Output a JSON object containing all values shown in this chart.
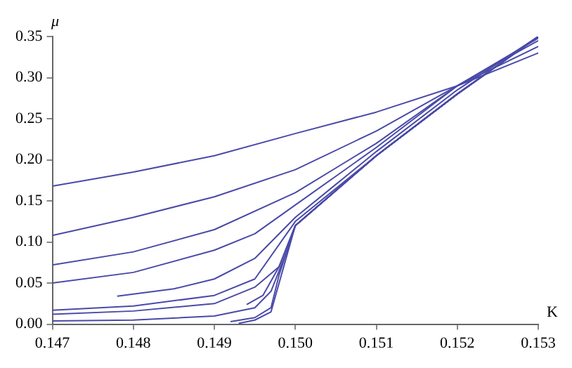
{
  "chart_data": {
    "type": "line",
    "xlabel": "K",
    "ylabel": "μ",
    "xlim": [
      0.147,
      0.153
    ],
    "ylim": [
      0,
      0.35
    ],
    "xticks": [
      0.147,
      0.148,
      0.149,
      {
        "value": 0.15,
        "label": "0.150"
      },
      0.151,
      0.152,
      0.153
    ],
    "yticks": [
      {
        "value": 0,
        "label": "0.00"
      },
      {
        "value": 0.05,
        "label": "0.05"
      },
      {
        "value": 0.1,
        "label": "0.10"
      },
      {
        "value": 0.15,
        "label": "0.15"
      },
      {
        "value": 0.2,
        "label": "0.20"
      },
      {
        "value": 0.25,
        "label": "0.25"
      },
      {
        "value": 0.3,
        "label": "0.30"
      },
      {
        "value": 0.35,
        "label": "0.35"
      }
    ],
    "grid": false,
    "legend": false,
    "marker": "none",
    "line_style": "solid",
    "series": [
      {
        "color": "#4a4aa8",
        "x": [
          0.147,
          0.148,
          0.149,
          0.15,
          0.151,
          0.152,
          0.153
        ],
        "values": [
          0.168,
          0.185,
          0.205,
          0.232,
          0.258,
          0.29,
          0.33
        ]
      },
      {
        "color": "#4a4aa8",
        "x": [
          0.147,
          0.148,
          0.149,
          0.15,
          0.151,
          0.152,
          0.153
        ],
        "values": [
          0.108,
          0.13,
          0.155,
          0.188,
          0.235,
          0.29,
          0.338
        ]
      },
      {
        "color": "#4a4aa8",
        "x": [
          0.147,
          0.148,
          0.149,
          0.15,
          0.1505,
          0.151,
          0.152,
          0.153
        ],
        "values": [
          0.072,
          0.088,
          0.115,
          0.16,
          0.19,
          0.22,
          0.29,
          0.345
        ]
      },
      {
        "color": "#4a4aa8",
        "x": [
          0.147,
          0.148,
          0.149,
          0.1495,
          0.15,
          0.1505,
          0.151,
          0.152,
          0.153
        ],
        "values": [
          0.05,
          0.063,
          0.09,
          0.11,
          0.145,
          0.18,
          0.215,
          0.29,
          0.348
        ]
      },
      {
        "color": "#4a4aa8",
        "x": [
          0.1478,
          0.1485,
          0.149,
          0.1495,
          0.15,
          0.1505,
          0.151,
          0.152,
          0.153
        ],
        "values": [
          0.034,
          0.043,
          0.055,
          0.08,
          0.13,
          0.17,
          0.21,
          0.285,
          0.35
        ]
      },
      {
        "color": "#4a4aa8",
        "x": [
          0.147,
          0.148,
          0.149,
          0.1495,
          0.15,
          0.151,
          0.152,
          0.153
        ],
        "values": [
          0.017,
          0.022,
          0.035,
          0.055,
          0.125,
          0.205,
          0.28,
          0.35
        ]
      },
      {
        "color": "#4a4aa8",
        "x": [
          0.147,
          0.148,
          0.149,
          0.1495,
          0.1498,
          0.15,
          0.151,
          0.152,
          0.153
        ],
        "values": [
          0.012,
          0.016,
          0.025,
          0.045,
          0.07,
          0.12,
          0.205,
          0.28,
          0.35
        ]
      },
      {
        "color": "#4a4aa8",
        "x": [
          0.147,
          0.148,
          0.149,
          0.1495,
          0.1497,
          0.1499,
          0.15,
          0.151,
          0.152,
          0.153
        ],
        "values": [
          0.004,
          0.005,
          0.01,
          0.02,
          0.04,
          0.09,
          0.12,
          0.205,
          0.28,
          0.35
        ]
      },
      {
        "color": "#4a4aa8",
        "x": [
          0.1494,
          0.1496,
          0.1498,
          0.15,
          0.151,
          0.152,
          0.153
        ],
        "values": [
          0.024,
          0.035,
          0.07,
          0.12,
          0.205,
          0.28,
          0.35
        ]
      },
      {
        "color": "#4a4aa8",
        "x": [
          0.1492,
          0.1495,
          0.1497,
          0.1498,
          0.15,
          0.151,
          0.152,
          0.153
        ],
        "values": [
          0.003,
          0.008,
          0.02,
          0.06,
          0.12,
          0.205,
          0.28,
          0.35
        ]
      },
      {
        "color": "#4a4aa8",
        "x": [
          0.1493,
          0.1495,
          0.1497,
          0.1498,
          0.15,
          0.151,
          0.152,
          0.153
        ],
        "values": [
          0.001,
          0.005,
          0.015,
          0.05,
          0.12,
          0.205,
          0.28,
          0.35
        ]
      }
    ]
  }
}
